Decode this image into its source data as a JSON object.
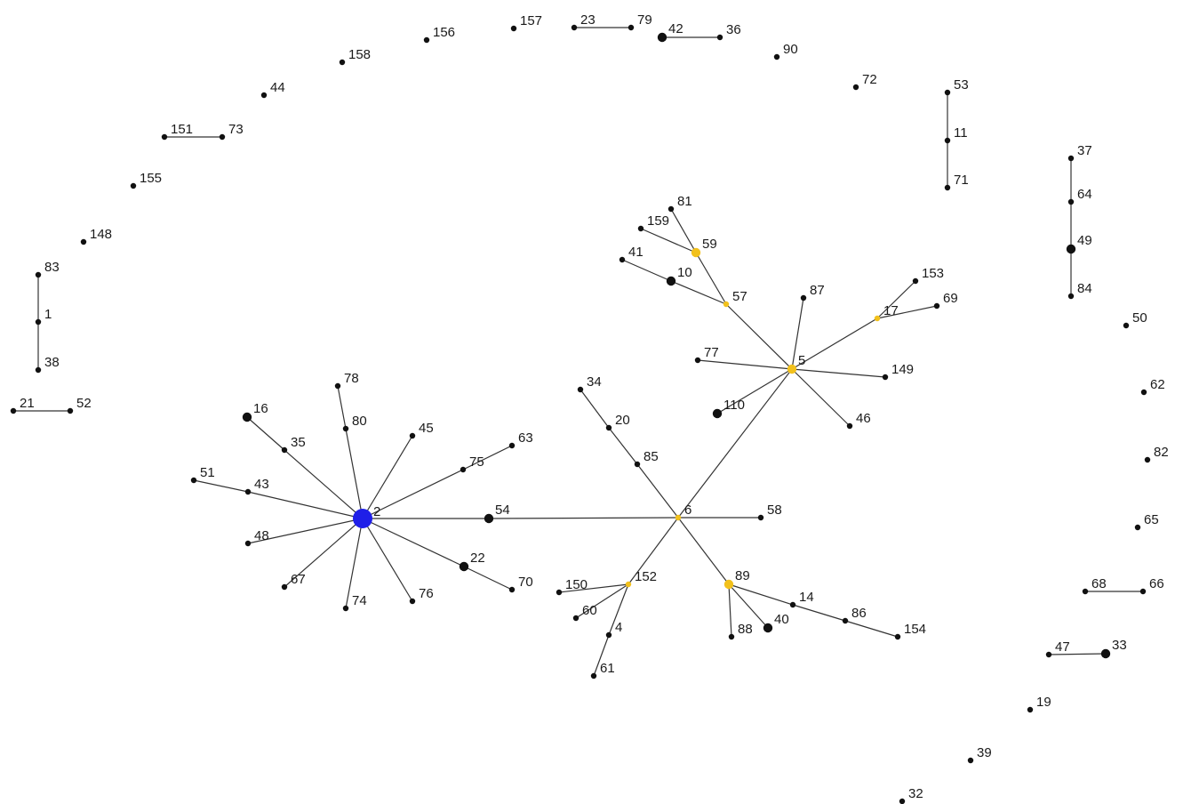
{
  "colors": {
    "default": "#111111",
    "hub": "#1f1fe8",
    "highlight": "#f2c11c",
    "edge": "#333333",
    "background": "#ffffff"
  },
  "nodes": [
    {
      "id": "157",
      "label": "157",
      "kind": "default",
      "size": "small"
    },
    {
      "id": "23",
      "label": "23",
      "kind": "default",
      "size": "small"
    },
    {
      "id": "79",
      "label": "79",
      "kind": "default",
      "size": "small"
    },
    {
      "id": "42",
      "label": "42",
      "kind": "default",
      "size": "medium"
    },
    {
      "id": "36",
      "label": "36",
      "kind": "default",
      "size": "small"
    },
    {
      "id": "156",
      "label": "156",
      "kind": "default",
      "size": "small"
    },
    {
      "id": "158",
      "label": "158",
      "kind": "default",
      "size": "small"
    },
    {
      "id": "90",
      "label": "90",
      "kind": "default",
      "size": "small"
    },
    {
      "id": "44",
      "label": "44",
      "kind": "default",
      "size": "small"
    },
    {
      "id": "72",
      "label": "72",
      "kind": "default",
      "size": "small"
    },
    {
      "id": "53",
      "label": "53",
      "kind": "default",
      "size": "small"
    },
    {
      "id": "11",
      "label": "11",
      "kind": "default",
      "size": "small"
    },
    {
      "id": "71",
      "label": "71",
      "kind": "default",
      "size": "small"
    },
    {
      "id": "151",
      "label": "151",
      "kind": "default",
      "size": "small"
    },
    {
      "id": "73",
      "label": "73",
      "kind": "default",
      "size": "small"
    },
    {
      "id": "37",
      "label": "37",
      "kind": "default",
      "size": "small"
    },
    {
      "id": "64",
      "label": "64",
      "kind": "default",
      "size": "small"
    },
    {
      "id": "49",
      "label": "49",
      "kind": "default",
      "size": "medium"
    },
    {
      "id": "84",
      "label": "84",
      "kind": "default",
      "size": "small"
    },
    {
      "id": "155",
      "label": "155",
      "kind": "default",
      "size": "small"
    },
    {
      "id": "148",
      "label": "148",
      "kind": "default",
      "size": "small"
    },
    {
      "id": "83",
      "label": "83",
      "kind": "default",
      "size": "small"
    },
    {
      "id": "1",
      "label": "1",
      "kind": "default",
      "size": "small"
    },
    {
      "id": "38",
      "label": "38",
      "kind": "default",
      "size": "small"
    },
    {
      "id": "21",
      "label": "21",
      "kind": "default",
      "size": "small"
    },
    {
      "id": "52",
      "label": "52",
      "kind": "default",
      "size": "small"
    },
    {
      "id": "50",
      "label": "50",
      "kind": "default",
      "size": "small"
    },
    {
      "id": "62",
      "label": "62",
      "kind": "default",
      "size": "small"
    },
    {
      "id": "82",
      "label": "82",
      "kind": "default",
      "size": "small"
    },
    {
      "id": "65",
      "label": "65",
      "kind": "default",
      "size": "small"
    },
    {
      "id": "68",
      "label": "68",
      "kind": "default",
      "size": "small"
    },
    {
      "id": "66",
      "label": "66",
      "kind": "default",
      "size": "small"
    },
    {
      "id": "47",
      "label": "47",
      "kind": "default",
      "size": "small"
    },
    {
      "id": "33",
      "label": "33",
      "kind": "default",
      "size": "medium"
    },
    {
      "id": "19",
      "label": "19",
      "kind": "default",
      "size": "small"
    },
    {
      "id": "39",
      "label": "39",
      "kind": "default",
      "size": "small"
    },
    {
      "id": "32",
      "label": "32",
      "kind": "default",
      "size": "small"
    },
    {
      "id": "81",
      "label": "81",
      "kind": "default",
      "size": "small"
    },
    {
      "id": "159",
      "label": "159",
      "kind": "default",
      "size": "small"
    },
    {
      "id": "59",
      "label": "59",
      "kind": "highlight",
      "size": "medium"
    },
    {
      "id": "41",
      "label": "41",
      "kind": "default",
      "size": "small"
    },
    {
      "id": "10",
      "label": "10",
      "kind": "default",
      "size": "medium"
    },
    {
      "id": "57",
      "label": "57",
      "kind": "highlight",
      "size": "small"
    },
    {
      "id": "87",
      "label": "87",
      "kind": "default",
      "size": "small"
    },
    {
      "id": "153",
      "label": "153",
      "kind": "default",
      "size": "small"
    },
    {
      "id": "17",
      "label": "17",
      "kind": "highlight",
      "size": "small"
    },
    {
      "id": "69",
      "label": "69",
      "kind": "default",
      "size": "small"
    },
    {
      "id": "77",
      "label": "77",
      "kind": "default",
      "size": "small"
    },
    {
      "id": "5",
      "label": "5",
      "kind": "highlight",
      "size": "medium"
    },
    {
      "id": "149",
      "label": "149",
      "kind": "default",
      "size": "small"
    },
    {
      "id": "110",
      "label": "110",
      "kind": "default",
      "size": "medium"
    },
    {
      "id": "46",
      "label": "46",
      "kind": "default",
      "size": "small"
    },
    {
      "id": "34",
      "label": "34",
      "kind": "default",
      "size": "small"
    },
    {
      "id": "20",
      "label": "20",
      "kind": "default",
      "size": "small"
    },
    {
      "id": "85",
      "label": "85",
      "kind": "default",
      "size": "small"
    },
    {
      "id": "6",
      "label": "6",
      "kind": "highlight",
      "size": "small"
    },
    {
      "id": "58",
      "label": "58",
      "kind": "default",
      "size": "small"
    },
    {
      "id": "152",
      "label": "152",
      "kind": "highlight",
      "size": "small"
    },
    {
      "id": "150",
      "label": "150",
      "kind": "default",
      "size": "small"
    },
    {
      "id": "60",
      "label": "60",
      "kind": "default",
      "size": "small"
    },
    {
      "id": "4",
      "label": "4",
      "kind": "default",
      "size": "small"
    },
    {
      "id": "61",
      "label": "61",
      "kind": "default",
      "size": "small"
    },
    {
      "id": "89",
      "label": "89",
      "kind": "highlight",
      "size": "medium"
    },
    {
      "id": "14",
      "label": "14",
      "kind": "default",
      "size": "small"
    },
    {
      "id": "86",
      "label": "86",
      "kind": "default",
      "size": "small"
    },
    {
      "id": "154",
      "label": "154",
      "kind": "default",
      "size": "small"
    },
    {
      "id": "88",
      "label": "88",
      "kind": "default",
      "size": "small"
    },
    {
      "id": "40",
      "label": "40",
      "kind": "default",
      "size": "medium"
    },
    {
      "id": "2",
      "label": "2",
      "kind": "hub",
      "size": "large"
    },
    {
      "id": "16",
      "label": "16",
      "kind": "default",
      "size": "medium"
    },
    {
      "id": "35",
      "label": "35",
      "kind": "default",
      "size": "small"
    },
    {
      "id": "78",
      "label": "78",
      "kind": "default",
      "size": "small"
    },
    {
      "id": "80",
      "label": "80",
      "kind": "default",
      "size": "small"
    },
    {
      "id": "45",
      "label": "45",
      "kind": "default",
      "size": "small"
    },
    {
      "id": "63",
      "label": "63",
      "kind": "default",
      "size": "small"
    },
    {
      "id": "75",
      "label": "75",
      "kind": "default",
      "size": "small"
    },
    {
      "id": "51",
      "label": "51",
      "kind": "default",
      "size": "small"
    },
    {
      "id": "43",
      "label": "43",
      "kind": "default",
      "size": "small"
    },
    {
      "id": "54",
      "label": "54",
      "kind": "default",
      "size": "medium"
    },
    {
      "id": "48",
      "label": "48",
      "kind": "default",
      "size": "small"
    },
    {
      "id": "22",
      "label": "22",
      "kind": "default",
      "size": "medium"
    },
    {
      "id": "70",
      "label": "70",
      "kind": "default",
      "size": "small"
    },
    {
      "id": "67",
      "label": "67",
      "kind": "default",
      "size": "small"
    },
    {
      "id": "74",
      "label": "74",
      "kind": "default",
      "size": "small"
    },
    {
      "id": "76",
      "label": "76",
      "kind": "default",
      "size": "small"
    }
  ],
  "edges": [
    [
      "23",
      "79"
    ],
    [
      "42",
      "36"
    ],
    [
      "53",
      "11"
    ],
    [
      "11",
      "71"
    ],
    [
      "151",
      "73"
    ],
    [
      "37",
      "64"
    ],
    [
      "64",
      "49"
    ],
    [
      "49",
      "84"
    ],
    [
      "83",
      "1"
    ],
    [
      "1",
      "38"
    ],
    [
      "21",
      "52"
    ],
    [
      "68",
      "66"
    ],
    [
      "47",
      "33"
    ],
    [
      "81",
      "59"
    ],
    [
      "159",
      "59"
    ],
    [
      "59",
      "57"
    ],
    [
      "41",
      "10"
    ],
    [
      "10",
      "57"
    ],
    [
      "57",
      "5"
    ],
    [
      "87",
      "5"
    ],
    [
      "153",
      "17"
    ],
    [
      "69",
      "17"
    ],
    [
      "17",
      "5"
    ],
    [
      "77",
      "5"
    ],
    [
      "149",
      "5"
    ],
    [
      "110",
      "5"
    ],
    [
      "46",
      "5"
    ],
    [
      "5",
      "6"
    ],
    [
      "34",
      "20"
    ],
    [
      "20",
      "85"
    ],
    [
      "85",
      "6"
    ],
    [
      "6",
      "58"
    ],
    [
      "6",
      "152"
    ],
    [
      "150",
      "152"
    ],
    [
      "60",
      "152"
    ],
    [
      "4",
      "152"
    ],
    [
      "61",
      "4"
    ],
    [
      "6",
      "89"
    ],
    [
      "89",
      "14"
    ],
    [
      "14",
      "86"
    ],
    [
      "86",
      "154"
    ],
    [
      "89",
      "88"
    ],
    [
      "89",
      "40"
    ],
    [
      "2",
      "54"
    ],
    [
      "54",
      "6"
    ],
    [
      "16",
      "35"
    ],
    [
      "35",
      "2"
    ],
    [
      "78",
      "80"
    ],
    [
      "80",
      "2"
    ],
    [
      "45",
      "2"
    ],
    [
      "63",
      "75"
    ],
    [
      "75",
      "2"
    ],
    [
      "51",
      "43"
    ],
    [
      "43",
      "2"
    ],
    [
      "48",
      "2"
    ],
    [
      "22",
      "70"
    ],
    [
      "2",
      "22"
    ],
    [
      "67",
      "2"
    ],
    [
      "74",
      "2"
    ],
    [
      "76",
      "2"
    ]
  ]
}
